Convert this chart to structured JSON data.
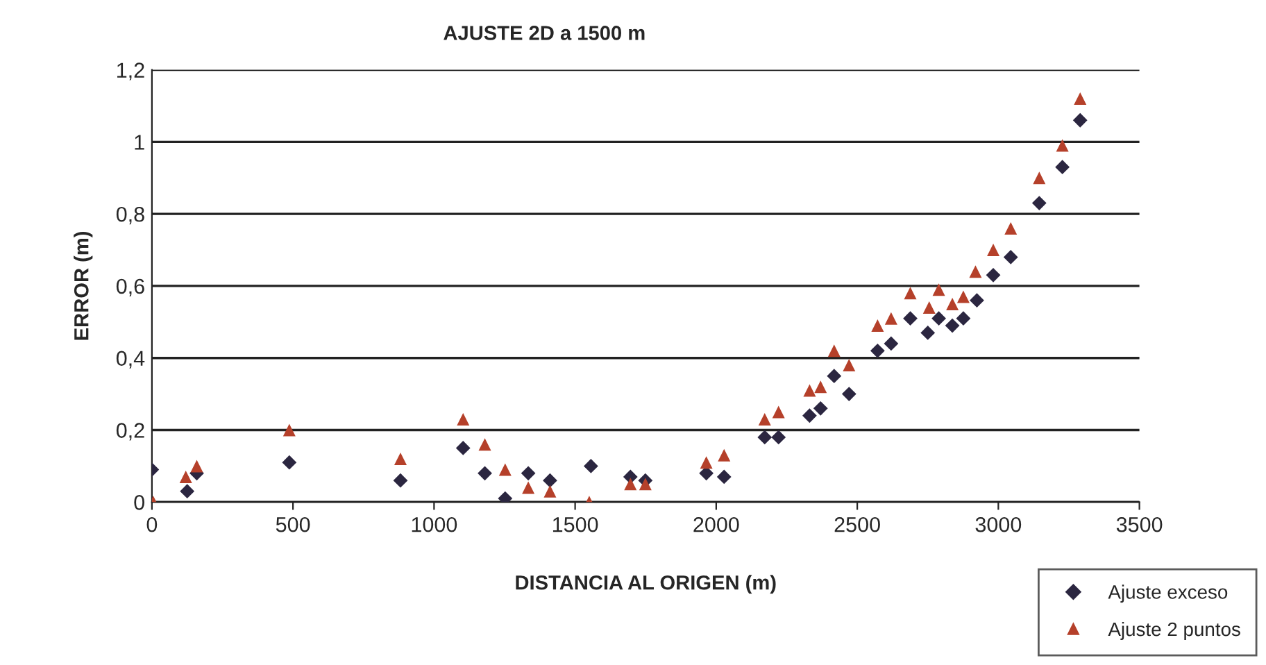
{
  "chart_data": {
    "type": "scatter",
    "title": "AJUSTE 2D a 1500 m",
    "xlabel": "DISTANCIA AL ORIGEN (m)",
    "ylabel": "ERROR (m)",
    "xlim": [
      0,
      3500
    ],
    "xticks": [
      0,
      500,
      1000,
      1500,
      2000,
      2500,
      3000,
      3500
    ],
    "ylim": [
      0,
      1.2
    ],
    "yticks": [
      0,
      {
        "value": 0.2,
        "label": "0,2"
      },
      {
        "value": 0.4,
        "label": "0,4"
      },
      {
        "value": 0.6,
        "label": "0,6"
      },
      {
        "value": 0.8,
        "label": "0,8"
      },
      1,
      {
        "value": 1.2,
        "label": "1,2"
      }
    ],
    "grid": "y",
    "legend": "bottom right",
    "series": [
      {
        "name": "Ajuste exceso",
        "color": "#2b2640",
        "marker": "diamond",
        "x": [
          0,
          125,
          159,
          487,
          881,
          1103,
          1180,
          1252,
          1334,
          1411,
          1556,
          1696,
          1749,
          1965,
          2028,
          2172,
          2221,
          2331,
          2370,
          2418,
          2471,
          2572,
          2620,
          2688,
          2750,
          2789,
          2837,
          2876,
          2924,
          2982,
          3044,
          3145,
          3227,
          3290
        ],
        "values": [
          0.09,
          0.03,
          0.08,
          0.11,
          0.06,
          0.15,
          0.08,
          0.01,
          0.08,
          0.06,
          0.1,
          0.07,
          0.06,
          0.08,
          0.07,
          0.18,
          0.18,
          0.24,
          0.26,
          0.35,
          0.3,
          0.42,
          0.44,
          0.51,
          0.47,
          0.51,
          0.49,
          0.51,
          0.56,
          0.63,
          0.68,
          0.83,
          0.93,
          1.06
        ]
      },
      {
        "name": "Ajuste 2 puntos",
        "color": "#b5402a",
        "marker": "triangle",
        "x": [
          5,
          120,
          159,
          487,
          881,
          1103,
          1180,
          1252,
          1334,
          1411,
          1550,
          1696,
          1749,
          1965,
          2028,
          2172,
          2221,
          2331,
          2370,
          2418,
          2471,
          2572,
          2620,
          2688,
          2755,
          2789,
          2837,
          2876,
          2919,
          2982,
          3044,
          3145,
          3227,
          3290
        ],
        "values": [
          0.0,
          0.07,
          0.1,
          0.2,
          0.12,
          0.23,
          0.16,
          0.09,
          0.04,
          0.03,
          0.0,
          0.05,
          0.05,
          0.11,
          0.13,
          0.23,
          0.25,
          0.31,
          0.32,
          0.42,
          0.38,
          0.49,
          0.51,
          0.58,
          0.54,
          0.59,
          0.55,
          0.57,
          0.64,
          0.7,
          0.76,
          0.9,
          0.99,
          1.12
        ]
      }
    ]
  }
}
